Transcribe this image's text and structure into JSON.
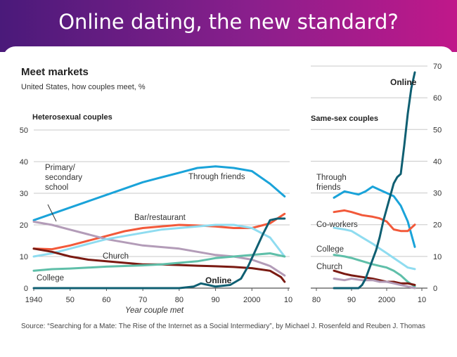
{
  "slide_title": "Online dating, the new standard?",
  "chart_data": [
    {
      "type": "line",
      "title": "Meet markets",
      "subtitle": "United States, how couples meet, %",
      "panel_label": "Heterosexual couples",
      "xlabel": "Year couple met",
      "ylabel": "",
      "xlim": [
        1940,
        2010
      ],
      "ylim": [
        0,
        50
      ],
      "x_ticks": [
        1940,
        1950,
        1960,
        1970,
        1980,
        1990,
        2000,
        2010
      ],
      "x_tick_labels": [
        "1940",
        "50",
        "60",
        "70",
        "80",
        "90",
        "2000",
        "10"
      ],
      "y_ticks": [
        0,
        10,
        20,
        30,
        40,
        50
      ],
      "y_tick_labels": [
        "0",
        "10",
        "20",
        "30",
        "40",
        "50"
      ],
      "grid": true,
      "series": [
        {
          "name": "Through friends",
          "color": "#1aa3d9",
          "points": [
            [
              1940,
              21.5
            ],
            [
              1945,
              23.5
            ],
            [
              1950,
              25.5
            ],
            [
              1955,
              27.5
            ],
            [
              1960,
              29.5
            ],
            [
              1965,
              31.5
            ],
            [
              1970,
              33.5
            ],
            [
              1975,
              35
            ],
            [
              1980,
              36.5
            ],
            [
              1985,
              38
            ],
            [
              1990,
              38.5
            ],
            [
              1995,
              38
            ],
            [
              2000,
              37
            ],
            [
              2005,
              33
            ],
            [
              2009,
              29
            ]
          ]
        },
        {
          "name": "Bar/restaurant",
          "color": "#f2593a",
          "points": [
            [
              1940,
              12.5
            ],
            [
              1945,
              12.3
            ],
            [
              1950,
              13.5
            ],
            [
              1955,
              15
            ],
            [
              1960,
              16.5
            ],
            [
              1965,
              18
            ],
            [
              1970,
              19
            ],
            [
              1975,
              19.5
            ],
            [
              1980,
              20
            ],
            [
              1985,
              19.8
            ],
            [
              1990,
              19.5
            ],
            [
              1995,
              19
            ],
            [
              2000,
              19
            ],
            [
              2005,
              20.5
            ],
            [
              2009,
              23.5
            ]
          ]
        },
        {
          "name": "Primary/secondary school",
          "color": "#b39cb8",
          "points": [
            [
              1940,
              21
            ],
            [
              1945,
              20
            ],
            [
              1950,
              18.5
            ],
            [
              1955,
              17
            ],
            [
              1960,
              15.5
            ],
            [
              1965,
              14.5
            ],
            [
              1970,
              13.5
            ],
            [
              1975,
              13
            ],
            [
              1980,
              12.5
            ],
            [
              1985,
              11.5
            ],
            [
              1990,
              10.5
            ],
            [
              1995,
              10
            ],
            [
              2000,
              9
            ],
            [
              2005,
              7
            ],
            [
              2009,
              4
            ]
          ]
        },
        {
          "name": "Co-workers",
          "color": "#8fdcf0",
          "points": [
            [
              1940,
              10
            ],
            [
              1945,
              11
            ],
            [
              1950,
              12.5
            ],
            [
              1955,
              14
            ],
            [
              1960,
              15.5
            ],
            [
              1965,
              16.5
            ],
            [
              1970,
              17.5
            ],
            [
              1975,
              18.5
            ],
            [
              1980,
              19
            ],
            [
              1985,
              19.5
            ],
            [
              1990,
              20
            ],
            [
              1995,
              20
            ],
            [
              2000,
              19
            ],
            [
              2005,
              16
            ],
            [
              2009,
              10
            ]
          ]
        },
        {
          "name": "Church",
          "color": "#7a1a12",
          "points": [
            [
              1940,
              12.5
            ],
            [
              1945,
              11.5
            ],
            [
              1950,
              10
            ],
            [
              1955,
              9
            ],
            [
              1960,
              8.5
            ],
            [
              1965,
              8
            ],
            [
              1970,
              7.5
            ],
            [
              1975,
              7.5
            ],
            [
              1980,
              7.3
            ],
            [
              1985,
              7.1
            ],
            [
              1990,
              6.9
            ],
            [
              1995,
              6.7
            ],
            [
              2000,
              6.3
            ],
            [
              2005,
              5.5
            ],
            [
              2008,
              3.5
            ],
            [
              2009,
              2
            ]
          ]
        },
        {
          "name": "College",
          "color": "#5fbfa9",
          "points": [
            [
              1940,
              5.5
            ],
            [
              1945,
              6
            ],
            [
              1950,
              6.2
            ],
            [
              1955,
              6.5
            ],
            [
              1960,
              6.8
            ],
            [
              1965,
              7
            ],
            [
              1970,
              7.2
            ],
            [
              1975,
              7.5
            ],
            [
              1980,
              8
            ],
            [
              1985,
              8.5
            ],
            [
              1990,
              9.5
            ],
            [
              1995,
              10
            ],
            [
              2000,
              10.5
            ],
            [
              2005,
              11
            ],
            [
              2009,
              10
            ]
          ]
        },
        {
          "name": "Online",
          "color": "#0f5f72",
          "points": [
            [
              1940,
              0
            ],
            [
              1950,
              0
            ],
            [
              1960,
              0
            ],
            [
              1970,
              0
            ],
            [
              1980,
              0
            ],
            [
              1984,
              0.5
            ],
            [
              1986,
              1.5
            ],
            [
              1988,
              1
            ],
            [
              1990,
              0.5
            ],
            [
              1994,
              1
            ],
            [
              1997,
              3
            ],
            [
              1999,
              7
            ],
            [
              2001,
              12
            ],
            [
              2003,
              17
            ],
            [
              2005,
              21.5
            ],
            [
              2007,
              22
            ],
            [
              2009,
              22
            ]
          ]
        }
      ]
    },
    {
      "type": "line",
      "panel_label": "Same-sex couples",
      "xlim": [
        1980,
        2010
      ],
      "ylim": [
        0,
        70
      ],
      "x_ticks": [
        1980,
        1990,
        2000,
        2010
      ],
      "x_tick_labels": [
        "80",
        "90",
        "2000",
        "10"
      ],
      "y_ticks": [
        0,
        10,
        20,
        30,
        40,
        50,
        60,
        70
      ],
      "y_tick_labels": [
        "0",
        "10",
        "20",
        "30",
        "40",
        "50",
        "60",
        "70"
      ],
      "grid": true,
      "series": [
        {
          "name": "Through friends",
          "color": "#1aa3d9",
          "points": [
            [
              1985,
              28.5
            ],
            [
              1988,
              30.5
            ],
            [
              1990,
              30
            ],
            [
              1992,
              29.5
            ],
            [
              1994,
              30.5
            ],
            [
              1996,
              32
            ],
            [
              1998,
              31
            ],
            [
              2000,
              30
            ],
            [
              2002,
              29
            ],
            [
              2004,
              26
            ],
            [
              2006,
              21
            ],
            [
              2008,
              13
            ]
          ]
        },
        {
          "name": "Co-workers",
          "color": "#f2593a",
          "points": [
            [
              1985,
              24
            ],
            [
              1988,
              24.5
            ],
            [
              1990,
              24
            ],
            [
              1993,
              23
            ],
            [
              1996,
              22.5
            ],
            [
              1998,
              22
            ],
            [
              2000,
              21
            ],
            [
              2002,
              18.5
            ],
            [
              2004,
              18
            ],
            [
              2006,
              18
            ],
            [
              2008,
              20
            ]
          ]
        },
        {
          "name": "College",
          "color": "#8fdcf0",
          "points": [
            [
              1985,
              19
            ],
            [
              1988,
              18.5
            ],
            [
              1990,
              18
            ],
            [
              1993,
              16
            ],
            [
              1996,
              14
            ],
            [
              1998,
              12.5
            ],
            [
              2000,
              11
            ],
            [
              2002,
              9.5
            ],
            [
              2004,
              8
            ],
            [
              2006,
              6.5
            ],
            [
              2008,
              6
            ]
          ]
        },
        {
          "name": "Church",
          "color": "#5fbfa9",
          "points": [
            [
              1985,
              10.5
            ],
            [
              1988,
              10
            ],
            [
              1990,
              9.5
            ],
            [
              1993,
              8.5
            ],
            [
              1996,
              7.5
            ],
            [
              1998,
              7
            ],
            [
              2000,
              6.5
            ],
            [
              2002,
              5.5
            ],
            [
              2004,
              4
            ],
            [
              2006,
              2
            ],
            [
              2008,
              0.5
            ]
          ]
        },
        {
          "name": "",
          "color": "#7a1a12",
          "points": [
            [
              1985,
              5.5
            ],
            [
              1988,
              4.5
            ],
            [
              1990,
              4
            ],
            [
              1993,
              3.5
            ],
            [
              1996,
              3
            ],
            [
              1998,
              2.5
            ],
            [
              2000,
              2
            ],
            [
              2002,
              2
            ],
            [
              2004,
              1.5
            ],
            [
              2006,
              1.5
            ],
            [
              2008,
              1
            ]
          ]
        },
        {
          "name": "",
          "color": "#b39cb8",
          "points": [
            [
              1985,
              3
            ],
            [
              1988,
              2.5
            ],
            [
              1990,
              3
            ],
            [
              1993,
              2.5
            ],
            [
              1996,
              2.5
            ],
            [
              1998,
              2
            ],
            [
              2000,
              2
            ],
            [
              2002,
              1.5
            ],
            [
              2004,
              1
            ],
            [
              2006,
              0.5
            ],
            [
              2008,
              0
            ]
          ]
        },
        {
          "name": "Online",
          "color": "#0f5f72",
          "points": [
            [
              1985,
              0
            ],
            [
              1990,
              0
            ],
            [
              1992,
              0
            ],
            [
              1993,
              1
            ],
            [
              1994,
              3
            ],
            [
              1995,
              6
            ],
            [
              1996,
              9
            ],
            [
              1997,
              12
            ],
            [
              1998,
              16
            ],
            [
              1999,
              21
            ],
            [
              2000,
              25
            ],
            [
              2001,
              29
            ],
            [
              2002,
              33
            ],
            [
              2003,
              35
            ],
            [
              2004,
              36
            ],
            [
              2005,
              45
            ],
            [
              2006,
              55
            ],
            [
              2007,
              63
            ],
            [
              2008,
              68
            ]
          ]
        }
      ]
    }
  ],
  "series_labels": {
    "school": [
      "Primary/",
      "secondary",
      "school"
    ],
    "friends": "Through friends",
    "bar": "Bar/restaurant",
    "church": "Church",
    "online": "Online",
    "college": "College"
  },
  "right_series_labels": {
    "friends": [
      "Through",
      "friends"
    ],
    "coworkers": "Co-workers",
    "college": "College",
    "church": "Church",
    "online": "Online"
  },
  "source": "Source: “Searching for a Mate: The Rise of the Internet as a Social Intermediary”, by Michael J. Rosenfeld and Reuben J. Thomas"
}
